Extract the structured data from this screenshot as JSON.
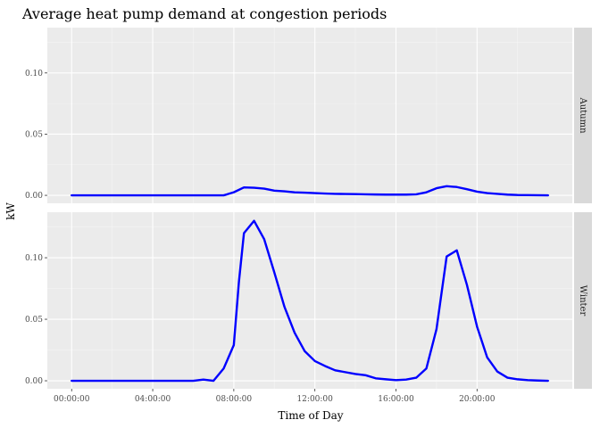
{
  "chart_data": {
    "type": "line",
    "title": "Average heat pump demand at congestion periods",
    "xlabel": "Time of Day",
    "ylabel": "kW",
    "x_tick_labels": [
      "00:00:00",
      "04:00:00",
      "08:00:00",
      "12:00:00",
      "16:00:00",
      "20:00:00"
    ],
    "x_tick_hours": [
      0,
      4,
      8,
      12,
      16,
      20
    ],
    "x_range_hours": [
      -1.2,
      24.7
    ],
    "y_tick_labels": [
      "0.00",
      "0.05",
      "0.10"
    ],
    "y_ticks": [
      0,
      0.05,
      0.1
    ],
    "ylim": [
      -0.0065,
      0.137
    ],
    "line_color": "#0000ff",
    "grid": true,
    "facet_direction": "rows",
    "panels": [
      {
        "strip_label": "Autumn",
        "x_hours": [
          0,
          0.5,
          1,
          1.5,
          2,
          2.5,
          3,
          3.5,
          4,
          4.5,
          5,
          5.5,
          6,
          6.5,
          7,
          7.5,
          8,
          8.5,
          9,
          9.5,
          10,
          10.5,
          11,
          11.5,
          12,
          12.5,
          13,
          13.5,
          14,
          14.5,
          15,
          15.5,
          16,
          16.5,
          17,
          17.5,
          18,
          18.5,
          19,
          19.5,
          20,
          20.5,
          21,
          21.5,
          22,
          22.5,
          23,
          23.5
        ],
        "values": [
          0,
          0,
          0,
          0,
          0,
          0,
          0,
          0,
          0,
          0,
          0,
          0,
          0,
          0,
          0,
          0,
          0.0025,
          0.0065,
          0.0062,
          0.0055,
          0.0038,
          0.0033,
          0.0025,
          0.0022,
          0.0018,
          0.0015,
          0.0012,
          0.0011,
          0.001,
          0.0008,
          0.0007,
          0.0006,
          0.0006,
          0.0006,
          0.0008,
          0.0025,
          0.0058,
          0.0075,
          0.0068,
          0.005,
          0.003,
          0.0018,
          0.0012,
          0.0006,
          0.0003,
          0.0002,
          0.0001,
          0
        ]
      },
      {
        "strip_label": "Winter",
        "x_hours": [
          0,
          0.5,
          1,
          1.5,
          2,
          2.5,
          3,
          3.5,
          4,
          4.5,
          5,
          5.5,
          6,
          6.5,
          7,
          7.5,
          8,
          8.25,
          8.5,
          9,
          9.5,
          10,
          10.5,
          11,
          11.5,
          12,
          12.5,
          13,
          13.5,
          14,
          14.5,
          15,
          15.5,
          16,
          16.5,
          17,
          17.5,
          18,
          18.5,
          19,
          19.5,
          20,
          20.5,
          21,
          21.5,
          22,
          22.5,
          23,
          23.5
        ],
        "values": [
          0,
          0,
          0,
          0,
          0,
          0,
          0,
          0,
          0,
          0,
          0,
          0,
          0,
          0.001,
          0,
          0.01,
          0.029,
          0.08,
          0.12,
          0.13,
          0.115,
          0.088,
          0.06,
          0.039,
          0.024,
          0.016,
          0.012,
          0.0085,
          0.007,
          0.0055,
          0.0045,
          0.002,
          0.0012,
          0.0005,
          0.001,
          0.0025,
          0.01,
          0.042,
          0.101,
          0.106,
          0.078,
          0.044,
          0.019,
          0.0075,
          0.0025,
          0.0012,
          0.0005,
          0.0002,
          0
        ]
      }
    ]
  }
}
